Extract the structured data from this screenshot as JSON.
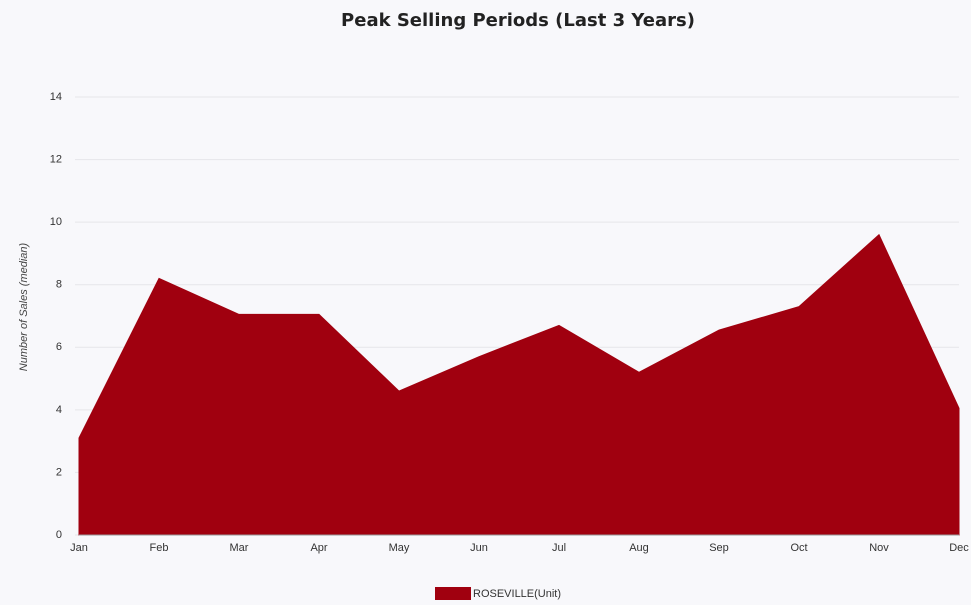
{
  "chart_data": {
    "type": "area",
    "title": "Peak Selling Periods (Last 3 Years)",
    "y_label": "Number of Sales (median)",
    "categories": [
      "Jan",
      "Feb",
      "Mar",
      "Apr",
      "May",
      "Jun",
      "Jul",
      "Aug",
      "Sep",
      "Oct",
      "Nov",
      "Dec"
    ],
    "series": [
      {
        "name": "ROSEVILLE(Unit)",
        "color": "#a0000f",
        "values": [
          3.1,
          8.2,
          7.05,
          7.05,
          4.6,
          5.7,
          6.7,
          5.2,
          6.55,
          7.3,
          9.6,
          4.05
        ]
      }
    ],
    "ylim": [
      0,
      14
    ],
    "yticks": [
      0,
      2,
      4,
      6,
      8,
      10,
      12,
      14
    ],
    "grid": true
  }
}
